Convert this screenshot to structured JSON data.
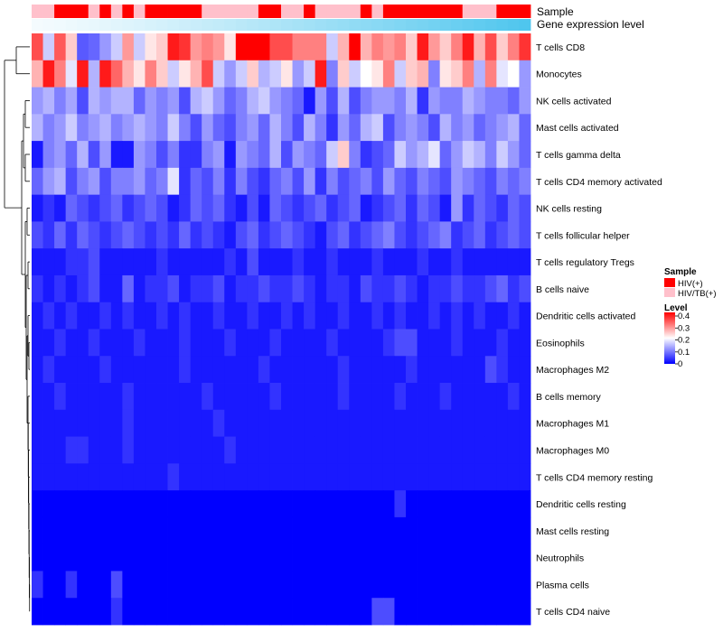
{
  "chart_data": {
    "type": "heatmap",
    "title": "",
    "annotation_rows": [
      "Sample",
      "Gene expression level"
    ],
    "legend": {
      "sample_title": "Sample",
      "sample_entries": [
        {
          "label": "HIV(+)",
          "color": "#ff0000"
        },
        {
          "label": "HIV/TB(+)",
          "color": "#ffc0cb"
        }
      ],
      "level_title": "Level",
      "level_ticks": [
        "0.4",
        "0.3",
        "0.2",
        "0.1",
        "0"
      ],
      "level_range": [
        0,
        0.4
      ]
    },
    "colors": {
      "low": "#0000ff",
      "mid": "#ffffff",
      "high": "#ff0000",
      "expr_low": "#f4fbfe",
      "expr_high": "#4fc6ee"
    },
    "sample_groups": [
      "HIV/TB(+)",
      "HIV/TB(+)",
      "HIV(+)",
      "HIV(+)",
      "HIV(+)",
      "HIV/TB(+)",
      "HIV(+)",
      "HIV/TB(+)",
      "HIV(+)",
      "HIV/TB(+)",
      "HIV(+)",
      "HIV(+)",
      "HIV(+)",
      "HIV(+)",
      "HIV(+)",
      "HIV/TB(+)",
      "HIV/TB(+)",
      "HIV/TB(+)",
      "HIV/TB(+)",
      "HIV/TB(+)",
      "HIV(+)",
      "HIV(+)",
      "HIV/TB(+)",
      "HIV/TB(+)",
      "HIV(+)",
      "HIV/TB(+)",
      "HIV/TB(+)",
      "HIV/TB(+)",
      "HIV/TB(+)",
      "HIV(+)",
      "HIV/TB(+)",
      "HIV(+)",
      "HIV(+)",
      "HIV(+)",
      "HIV(+)",
      "HIV(+)",
      "HIV(+)",
      "HIV(+)",
      "HIV/TB(+)",
      "HIV/TB(+)",
      "HIV/TB(+)",
      "HIV(+)",
      "HIV(+)",
      "HIV(+)"
    ],
    "rows": [
      {
        "name": "T cells CD8",
        "values": [
          0.34,
          0.16,
          0.33,
          0.24,
          0.07,
          0.08,
          0.12,
          0.16,
          0.28,
          0.16,
          0.22,
          0.24,
          0.38,
          0.36,
          0.28,
          0.3,
          0.28,
          0.22,
          0.4,
          0.4,
          0.4,
          0.34,
          0.34,
          0.3,
          0.3,
          0.3,
          0.16,
          0.26,
          0.4,
          0.26,
          0.3,
          0.28,
          0.3,
          0.24,
          0.38,
          0.28,
          0.24,
          0.3,
          0.38,
          0.26,
          0.34,
          0.24,
          0.3,
          0.36
        ]
      },
      {
        "name": "Monocytes",
        "values": [
          0.26,
          0.38,
          0.3,
          0.18,
          0.38,
          0.14,
          0.38,
          0.32,
          0.26,
          0.22,
          0.3,
          0.24,
          0.16,
          0.22,
          0.26,
          0.34,
          0.16,
          0.12,
          0.16,
          0.24,
          0.14,
          0.16,
          0.22,
          0.12,
          0.16,
          0.38,
          0.1,
          0.24,
          0.16,
          0.2,
          0.22,
          0.3,
          0.16,
          0.24,
          0.26,
          0.1,
          0.22,
          0.24,
          0.3,
          0.14,
          0.3,
          0.18,
          0.2,
          0.12
        ]
      },
      {
        "name": "NK cells activated",
        "values": [
          0.12,
          0.14,
          0.1,
          0.13,
          0.06,
          0.14,
          0.12,
          0.14,
          0.14,
          0.08,
          0.12,
          0.1,
          0.12,
          0.06,
          0.14,
          0.16,
          0.12,
          0.08,
          0.1,
          0.14,
          0.16,
          0.12,
          0.1,
          0.08,
          0.02,
          0.12,
          0.06,
          0.14,
          0.06,
          0.1,
          0.12,
          0.12,
          0.1,
          0.14,
          0.04,
          0.12,
          0.1,
          0.1,
          0.14,
          0.12,
          0.1,
          0.1,
          0.08,
          0.12
        ]
      },
      {
        "name": "Mast cells activated",
        "values": [
          0.14,
          0.1,
          0.12,
          0.16,
          0.1,
          0.12,
          0.14,
          0.1,
          0.12,
          0.14,
          0.12,
          0.1,
          0.16,
          0.1,
          0.06,
          0.12,
          0.08,
          0.06,
          0.1,
          0.12,
          0.08,
          0.14,
          0.1,
          0.06,
          0.14,
          0.1,
          0.04,
          0.12,
          0.08,
          0.14,
          0.16,
          0.06,
          0.1,
          0.12,
          0.1,
          0.06,
          0.14,
          0.1,
          0.12,
          0.08,
          0.1,
          0.12,
          0.14,
          0.08
        ]
      },
      {
        "name": "T cells gamma delta",
        "values": [
          0.02,
          0.1,
          0.12,
          0.08,
          0.14,
          0.06,
          0.12,
          0.02,
          0.02,
          0.12,
          0.1,
          0.06,
          0.1,
          0.04,
          0.04,
          0.1,
          0.12,
          0.02,
          0.12,
          0.1,
          0.08,
          0.14,
          0.06,
          0.12,
          0.1,
          0.08,
          0.16,
          0.24,
          0.1,
          0.04,
          0.06,
          0.08,
          0.16,
          0.12,
          0.14,
          0.18,
          0.08,
          0.12,
          0.16,
          0.14,
          0.1,
          0.16,
          0.12,
          0.08
        ]
      },
      {
        "name": "T cells CD4 memory activated",
        "values": [
          0.08,
          0.12,
          0.14,
          0.06,
          0.1,
          0.12,
          0.06,
          0.1,
          0.1,
          0.12,
          0.08,
          0.1,
          0.18,
          0.04,
          0.08,
          0.06,
          0.1,
          0.04,
          0.1,
          0.06,
          0.04,
          0.08,
          0.1,
          0.06,
          0.12,
          0.04,
          0.1,
          0.06,
          0.08,
          0.1,
          0.06,
          0.12,
          0.08,
          0.06,
          0.1,
          0.08,
          0.06,
          0.12,
          0.1,
          0.08,
          0.06,
          0.1,
          0.08,
          0.1
        ]
      },
      {
        "name": "NK cells resting",
        "values": [
          0.02,
          0.04,
          0.02,
          0.08,
          0.06,
          0.04,
          0.06,
          0.08,
          0.04,
          0.06,
          0.08,
          0.06,
          0.02,
          0.04,
          0.08,
          0.06,
          0.08,
          0.04,
          0.02,
          0.06,
          0.02,
          0.08,
          0.06,
          0.04,
          0.06,
          0.08,
          0.04,
          0.06,
          0.08,
          0.02,
          0.04,
          0.06,
          0.08,
          0.04,
          0.08,
          0.06,
          0.02,
          0.12,
          0.04,
          0.08,
          0.06,
          0.04,
          0.08,
          0.06
        ]
      },
      {
        "name": "T cells follicular helper",
        "values": [
          0.06,
          0.04,
          0.08,
          0.04,
          0.08,
          0.06,
          0.04,
          0.06,
          0.08,
          0.06,
          0.04,
          0.06,
          0.04,
          0.08,
          0.04,
          0.06,
          0.04,
          0.02,
          0.06,
          0.08,
          0.04,
          0.06,
          0.08,
          0.06,
          0.04,
          0.02,
          0.06,
          0.08,
          0.04,
          0.06,
          0.08,
          0.1,
          0.06,
          0.04,
          0.06,
          0.08,
          0.1,
          0.04,
          0.06,
          0.08,
          0.04,
          0.06,
          0.08,
          0.06
        ]
      },
      {
        "name": "T cells regulatory  Tregs",
        "values": [
          0.02,
          0.02,
          0.02,
          0.04,
          0.04,
          0.06,
          0.02,
          0.02,
          0.02,
          0.02,
          0.02,
          0.04,
          0.02,
          0.02,
          0.02,
          0.02,
          0.02,
          0.04,
          0.02,
          0.06,
          0.02,
          0.02,
          0.02,
          0.04,
          0.02,
          0.02,
          0.04,
          0.02,
          0.02,
          0.02,
          0.04,
          0.02,
          0.02,
          0.02,
          0.04,
          0.02,
          0.02,
          0.04,
          0.02,
          0.02,
          0.02,
          0.02,
          0.02,
          0.02
        ]
      },
      {
        "name": "B cells naive",
        "values": [
          0.04,
          0.02,
          0.04,
          0.02,
          0.04,
          0.06,
          0.02,
          0.02,
          0.08,
          0.02,
          0.04,
          0.04,
          0.06,
          0.02,
          0.04,
          0.04,
          0.06,
          0.02,
          0.04,
          0.04,
          0.06,
          0.04,
          0.04,
          0.06,
          0.04,
          0.02,
          0.04,
          0.04,
          0.02,
          0.06,
          0.04,
          0.04,
          0.06,
          0.04,
          0.02,
          0.04,
          0.04,
          0.06,
          0.04,
          0.04,
          0.06,
          0.08,
          0.04,
          0.06
        ]
      },
      {
        "name": "Dendritic cells activated",
        "values": [
          0.02,
          0.04,
          0.02,
          0.04,
          0.02,
          0.02,
          0.04,
          0.02,
          0.04,
          0.02,
          0.02,
          0.04,
          0.02,
          0.04,
          0.02,
          0.02,
          0.04,
          0.02,
          0.02,
          0.04,
          0.02,
          0.02,
          0.04,
          0.02,
          0.04,
          0.02,
          0.02,
          0.04,
          0.02,
          0.02,
          0.04,
          0.02,
          0.04,
          0.02,
          0.02,
          0.04,
          0.02,
          0.04,
          0.02,
          0.04,
          0.02,
          0.02,
          0.04,
          0.02
        ]
      },
      {
        "name": "Eosinophils",
        "values": [
          0.02,
          0.02,
          0.04,
          0.02,
          0.02,
          0.04,
          0.02,
          0.02,
          0.02,
          0.04,
          0.02,
          0.02,
          0.02,
          0.04,
          0.02,
          0.02,
          0.02,
          0.04,
          0.02,
          0.02,
          0.02,
          0.04,
          0.02,
          0.02,
          0.02,
          0.02,
          0.04,
          0.02,
          0.02,
          0.02,
          0.02,
          0.04,
          0.06,
          0.06,
          0.02,
          0.02,
          0.02,
          0.04,
          0.02,
          0.02,
          0.02,
          0.04,
          0.02,
          0.02
        ]
      },
      {
        "name": "Macrophages M2",
        "values": [
          0.02,
          0.04,
          0.02,
          0.02,
          0.02,
          0.02,
          0.04,
          0.02,
          0.02,
          0.02,
          0.02,
          0.02,
          0.02,
          0.04,
          0.02,
          0.02,
          0.02,
          0.02,
          0.02,
          0.02,
          0.04,
          0.02,
          0.02,
          0.02,
          0.02,
          0.02,
          0.02,
          0.04,
          0.02,
          0.02,
          0.02,
          0.02,
          0.02,
          0.04,
          0.02,
          0.02,
          0.02,
          0.02,
          0.02,
          0.02,
          0.06,
          0.04,
          0.02,
          0.02
        ]
      },
      {
        "name": "B cells memory",
        "values": [
          0.02,
          0.02,
          0.04,
          0.02,
          0.02,
          0.02,
          0.02,
          0.02,
          0.04,
          0.02,
          0.02,
          0.02,
          0.02,
          0.02,
          0.02,
          0.04,
          0.02,
          0.02,
          0.02,
          0.02,
          0.02,
          0.04,
          0.02,
          0.02,
          0.02,
          0.02,
          0.02,
          0.04,
          0.02,
          0.02,
          0.02,
          0.02,
          0.04,
          0.02,
          0.02,
          0.02,
          0.04,
          0.02,
          0.02,
          0.02,
          0.02,
          0.02,
          0.04,
          0.02
        ]
      },
      {
        "name": "Macrophages M1",
        "values": [
          0.02,
          0.02,
          0.02,
          0.02,
          0.02,
          0.02,
          0.02,
          0.02,
          0.04,
          0.02,
          0.02,
          0.02,
          0.02,
          0.02,
          0.02,
          0.02,
          0.04,
          0.02,
          0.02,
          0.02,
          0.02,
          0.02,
          0.02,
          0.02,
          0.02,
          0.02,
          0.02,
          0.02,
          0.02,
          0.02,
          0.02,
          0.02,
          0.02,
          0.02,
          0.02,
          0.02,
          0.02,
          0.02,
          0.02,
          0.02,
          0.02,
          0.02,
          0.02,
          0.02
        ]
      },
      {
        "name": "Macrophages M0",
        "values": [
          0.02,
          0.02,
          0.02,
          0.04,
          0.04,
          0.02,
          0.02,
          0.02,
          0.04,
          0.02,
          0.02,
          0.02,
          0.02,
          0.02,
          0.02,
          0.02,
          0.02,
          0.04,
          0.02,
          0.02,
          0.02,
          0.02,
          0.02,
          0.02,
          0.02,
          0.02,
          0.02,
          0.02,
          0.02,
          0.02,
          0.02,
          0.02,
          0.02,
          0.02,
          0.02,
          0.02,
          0.02,
          0.02,
          0.02,
          0.02,
          0.02,
          0.02,
          0.02,
          0.02
        ]
      },
      {
        "name": "T cells CD4 memory resting",
        "values": [
          0.02,
          0.02,
          0.02,
          0.02,
          0.02,
          0.02,
          0.02,
          0.02,
          0.02,
          0.02,
          0.02,
          0.02,
          0.04,
          0.02,
          0.02,
          0.02,
          0.02,
          0.02,
          0.02,
          0.02,
          0.02,
          0.02,
          0.02,
          0.02,
          0.02,
          0.02,
          0.02,
          0.02,
          0.02,
          0.02,
          0.02,
          0.02,
          0.02,
          0.02,
          0.02,
          0.02,
          0.02,
          0.02,
          0.02,
          0.02,
          0.02,
          0.02,
          0.02,
          0.02
        ]
      },
      {
        "name": "Dendritic cells resting",
        "values": [
          0.0,
          0.0,
          0.0,
          0.0,
          0.0,
          0.0,
          0.0,
          0.0,
          0.0,
          0.0,
          0.0,
          0.0,
          0.0,
          0.0,
          0.0,
          0.0,
          0.0,
          0.0,
          0.0,
          0.0,
          0.0,
          0.0,
          0.0,
          0.0,
          0.0,
          0.0,
          0.0,
          0.0,
          0.0,
          0.0,
          0.0,
          0.0,
          0.04,
          0.0,
          0.0,
          0.0,
          0.0,
          0.0,
          0.0,
          0.0,
          0.0,
          0.0,
          0.0,
          0.0
        ]
      },
      {
        "name": "Mast cells resting",
        "values": [
          0.0,
          0.0,
          0.0,
          0.0,
          0.0,
          0.0,
          0.0,
          0.0,
          0.0,
          0.0,
          0.0,
          0.0,
          0.0,
          0.0,
          0.0,
          0.0,
          0.0,
          0.0,
          0.0,
          0.0,
          0.0,
          0.0,
          0.0,
          0.0,
          0.0,
          0.0,
          0.0,
          0.0,
          0.0,
          0.0,
          0.0,
          0.0,
          0.0,
          0.0,
          0.0,
          0.0,
          0.0,
          0.0,
          0.0,
          0.0,
          0.0,
          0.0,
          0.0,
          0.0
        ]
      },
      {
        "name": "Neutrophils",
        "values": [
          0.0,
          0.0,
          0.0,
          0.0,
          0.0,
          0.0,
          0.0,
          0.0,
          0.0,
          0.0,
          0.0,
          0.0,
          0.0,
          0.0,
          0.0,
          0.0,
          0.0,
          0.0,
          0.0,
          0.0,
          0.0,
          0.0,
          0.0,
          0.0,
          0.0,
          0.0,
          0.0,
          0.0,
          0.0,
          0.0,
          0.0,
          0.0,
          0.0,
          0.0,
          0.0,
          0.0,
          0.0,
          0.0,
          0.0,
          0.0,
          0.0,
          0.0,
          0.0,
          0.0
        ]
      },
      {
        "name": "Plasma cells",
        "values": [
          0.04,
          0.0,
          0.0,
          0.04,
          0.0,
          0.0,
          0.0,
          0.06,
          0.0,
          0.0,
          0.0,
          0.0,
          0.0,
          0.0,
          0.0,
          0.0,
          0.0,
          0.0,
          0.0,
          0.0,
          0.0,
          0.0,
          0.0,
          0.0,
          0.0,
          0.0,
          0.0,
          0.0,
          0.0,
          0.0,
          0.0,
          0.0,
          0.0,
          0.0,
          0.0,
          0.0,
          0.0,
          0.0,
          0.0,
          0.0,
          0.0,
          0.0,
          0.0,
          0.0
        ]
      },
      {
        "name": "T cells CD4 naive",
        "values": [
          0.0,
          0.0,
          0.0,
          0.0,
          0.0,
          0.0,
          0.0,
          0.04,
          0.0,
          0.0,
          0.0,
          0.0,
          0.0,
          0.0,
          0.0,
          0.0,
          0.0,
          0.0,
          0.0,
          0.0,
          0.0,
          0.0,
          0.0,
          0.0,
          0.0,
          0.0,
          0.0,
          0.0,
          0.0,
          0.0,
          0.06,
          0.06,
          0.0,
          0.0,
          0.0,
          0.0,
          0.0,
          0.0,
          0.0,
          0.0,
          0.0,
          0.0,
          0.0,
          0.0
        ]
      }
    ]
  }
}
